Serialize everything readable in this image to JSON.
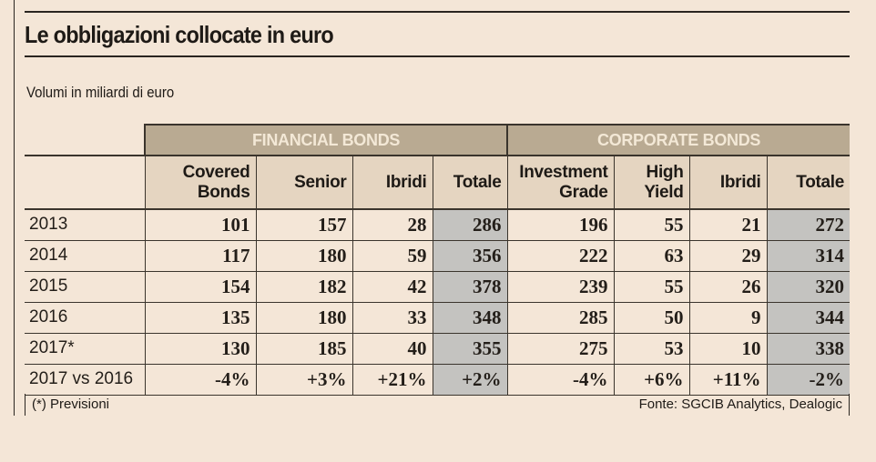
{
  "title": "Le obbligazioni collocate in euro",
  "subtitle": "Volumi in miliardi di euro",
  "groups": {
    "financial": "FINANCIAL BONDS",
    "corporate": "CORPORATE BONDS"
  },
  "columns": {
    "fin_covered": [
      "Covered",
      "Bonds"
    ],
    "fin_senior": "Senior",
    "fin_ibridi": "Ibridi",
    "fin_totale": "Totale",
    "corp_ig": [
      "Investment",
      "Grade"
    ],
    "corp_hy": [
      "High",
      "Yield"
    ],
    "corp_ibridi": "Ibridi",
    "corp_totale": "Totale"
  },
  "rows": [
    {
      "label": "2013",
      "values": [
        "101",
        "157",
        "28",
        "286",
        "196",
        "55",
        "21",
        "272"
      ]
    },
    {
      "label": "2014",
      "values": [
        "117",
        "180",
        "59",
        "356",
        "222",
        "63",
        "29",
        "314"
      ]
    },
    {
      "label": "2015",
      "values": [
        "154",
        "182",
        "42",
        "378",
        "239",
        "55",
        "26",
        "320"
      ]
    },
    {
      "label": "2016",
      "values": [
        "135",
        "180",
        "33",
        "348",
        "285",
        "50",
        "9",
        "344"
      ]
    },
    {
      "label": "2017*",
      "values": [
        "130",
        "185",
        "40",
        "355",
        "275",
        "53",
        "10",
        "338"
      ]
    },
    {
      "label": "2017 vs 2016",
      "values": [
        "-4%",
        "+3%",
        "+21%",
        "+2%",
        "-4%",
        "+6%",
        "+11%",
        "-2%"
      ]
    }
  ],
  "footnote": "(*) Previsioni",
  "source": "Fonte: SGCIB Analytics, Dealogic",
  "colors": {
    "background": "#f4e6d7",
    "group_header": "#b9aa92",
    "sub_header": "#e5d5c1",
    "total_cell": "#c4c3c0"
  }
}
